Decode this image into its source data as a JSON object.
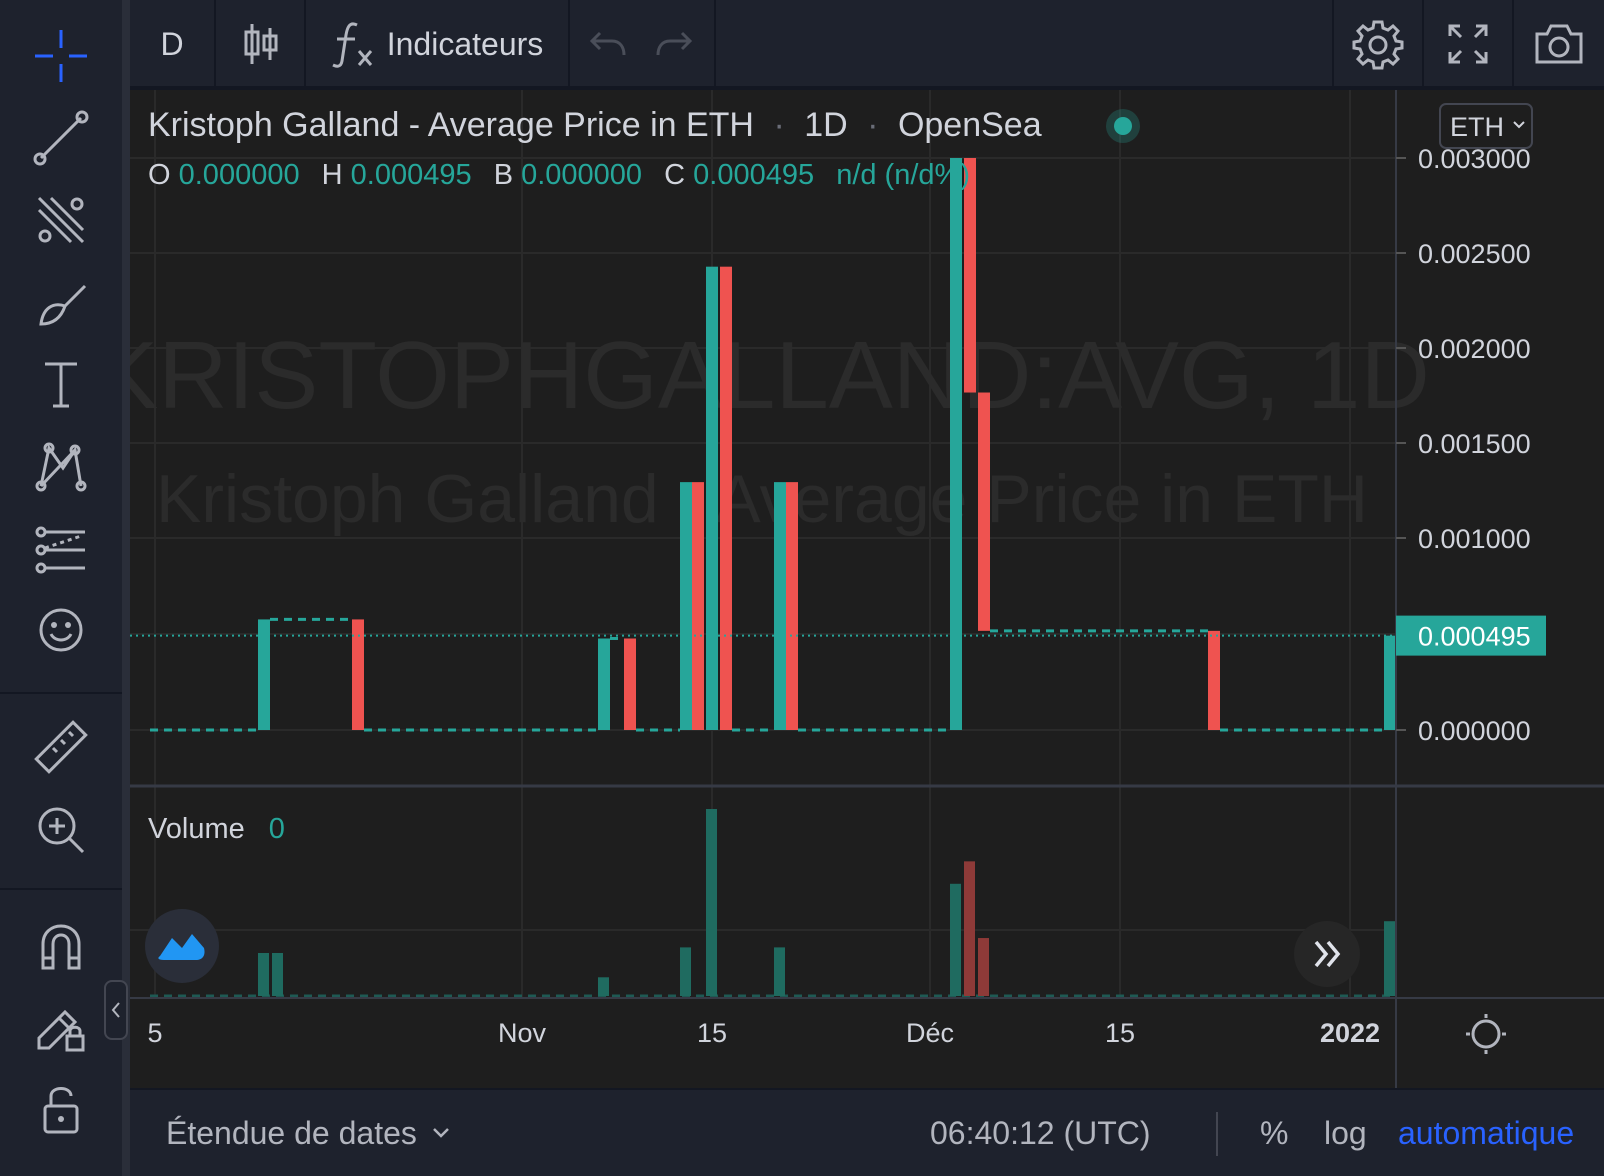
{
  "toolbar": {
    "interval": "D",
    "indicators_label": "Indicateurs"
  },
  "legend": {
    "title": "Kristoph Galland - Average Price in ETH",
    "sep1": "·",
    "interval": "1D",
    "sep2": "·",
    "exchange": "OpenSea",
    "o_label": "O",
    "o_value": "0.000000",
    "h_label": "H",
    "h_value": "0.000495",
    "b_label": "B",
    "b_value": "0.000000",
    "c_label": "C",
    "c_value": "0.000495",
    "change": "n/d (n/d%)"
  },
  "currency_button": "ETH",
  "watermark": {
    "symbol": "KRISTOPHGALLAND:AVG, 1D",
    "name": "Kristoph Galland - Average Price in ETH"
  },
  "volume": {
    "label": "Volume",
    "value": "0"
  },
  "price_axis": {
    "ticks": [
      "0.003000",
      "0.002500",
      "0.002000",
      "0.001500",
      "0.001000",
      "0.000000"
    ],
    "last_price": "0.000495"
  },
  "time_axis": {
    "ticks": [
      "5",
      "Nov",
      "15",
      "Déc",
      "15",
      "2022"
    ]
  },
  "bottom": {
    "date_range": "Étendue de dates",
    "clock": "06:40:12 (UTC)",
    "percent": "%",
    "log": "log",
    "auto": "automatique"
  },
  "colors": {
    "up": "#26a69a",
    "down": "#ef5350",
    "accent": "#2962ff",
    "background": "#1e1e1e"
  },
  "chart_data": {
    "type": "bar",
    "title": "Kristoph Galland - Average Price in ETH",
    "interval": "1D",
    "exchange": "OpenSea",
    "ylim": [
      0,
      0.003
    ],
    "last_price": 0.000495,
    "time_ticks": [
      "5",
      "Nov",
      "15",
      "Déc",
      "15",
      "2022"
    ],
    "candles": [
      {
        "open": 0.0,
        "close": 0.00058
      },
      {
        "open": 0.00058,
        "close": 0.0
      },
      {
        "open": 0.0,
        "close": 0.00048
      },
      {
        "open": 0.00048,
        "close": 0.0
      },
      {
        "open": 0.0,
        "close": 0.0013
      },
      {
        "open": 0.0013,
        "close": 0.0
      },
      {
        "open": 0.0,
        "close": 0.00243
      },
      {
        "open": 0.00243,
        "close": 0.0
      },
      {
        "open": 0.0,
        "close": 0.0013
      },
      {
        "open": 0.0013,
        "close": 0.0
      },
      {
        "open": 0.0,
        "close": 0.003
      },
      {
        "open": 0.003,
        "close": 0.00177
      },
      {
        "open": 0.00177,
        "close": 0.00052
      },
      {
        "open": 0.00052,
        "close": 0.0
      },
      {
        "open": 0.0,
        "close": 0.000495
      }
    ],
    "volume_bars": [
      {
        "dir": "up",
        "rel": 0.23
      },
      {
        "dir": "up",
        "rel": 0.23
      },
      {
        "dir": "up",
        "rel": 0.1
      },
      {
        "dir": "up",
        "rel": 0.26
      },
      {
        "dir": "up",
        "rel": 1.0
      },
      {
        "dir": "up",
        "rel": 0.26
      },
      {
        "dir": "up",
        "rel": 0.6
      },
      {
        "dir": "down",
        "rel": 0.72
      },
      {
        "dir": "down",
        "rel": 0.31
      },
      {
        "dir": "up",
        "rel": 0.4
      }
    ]
  }
}
